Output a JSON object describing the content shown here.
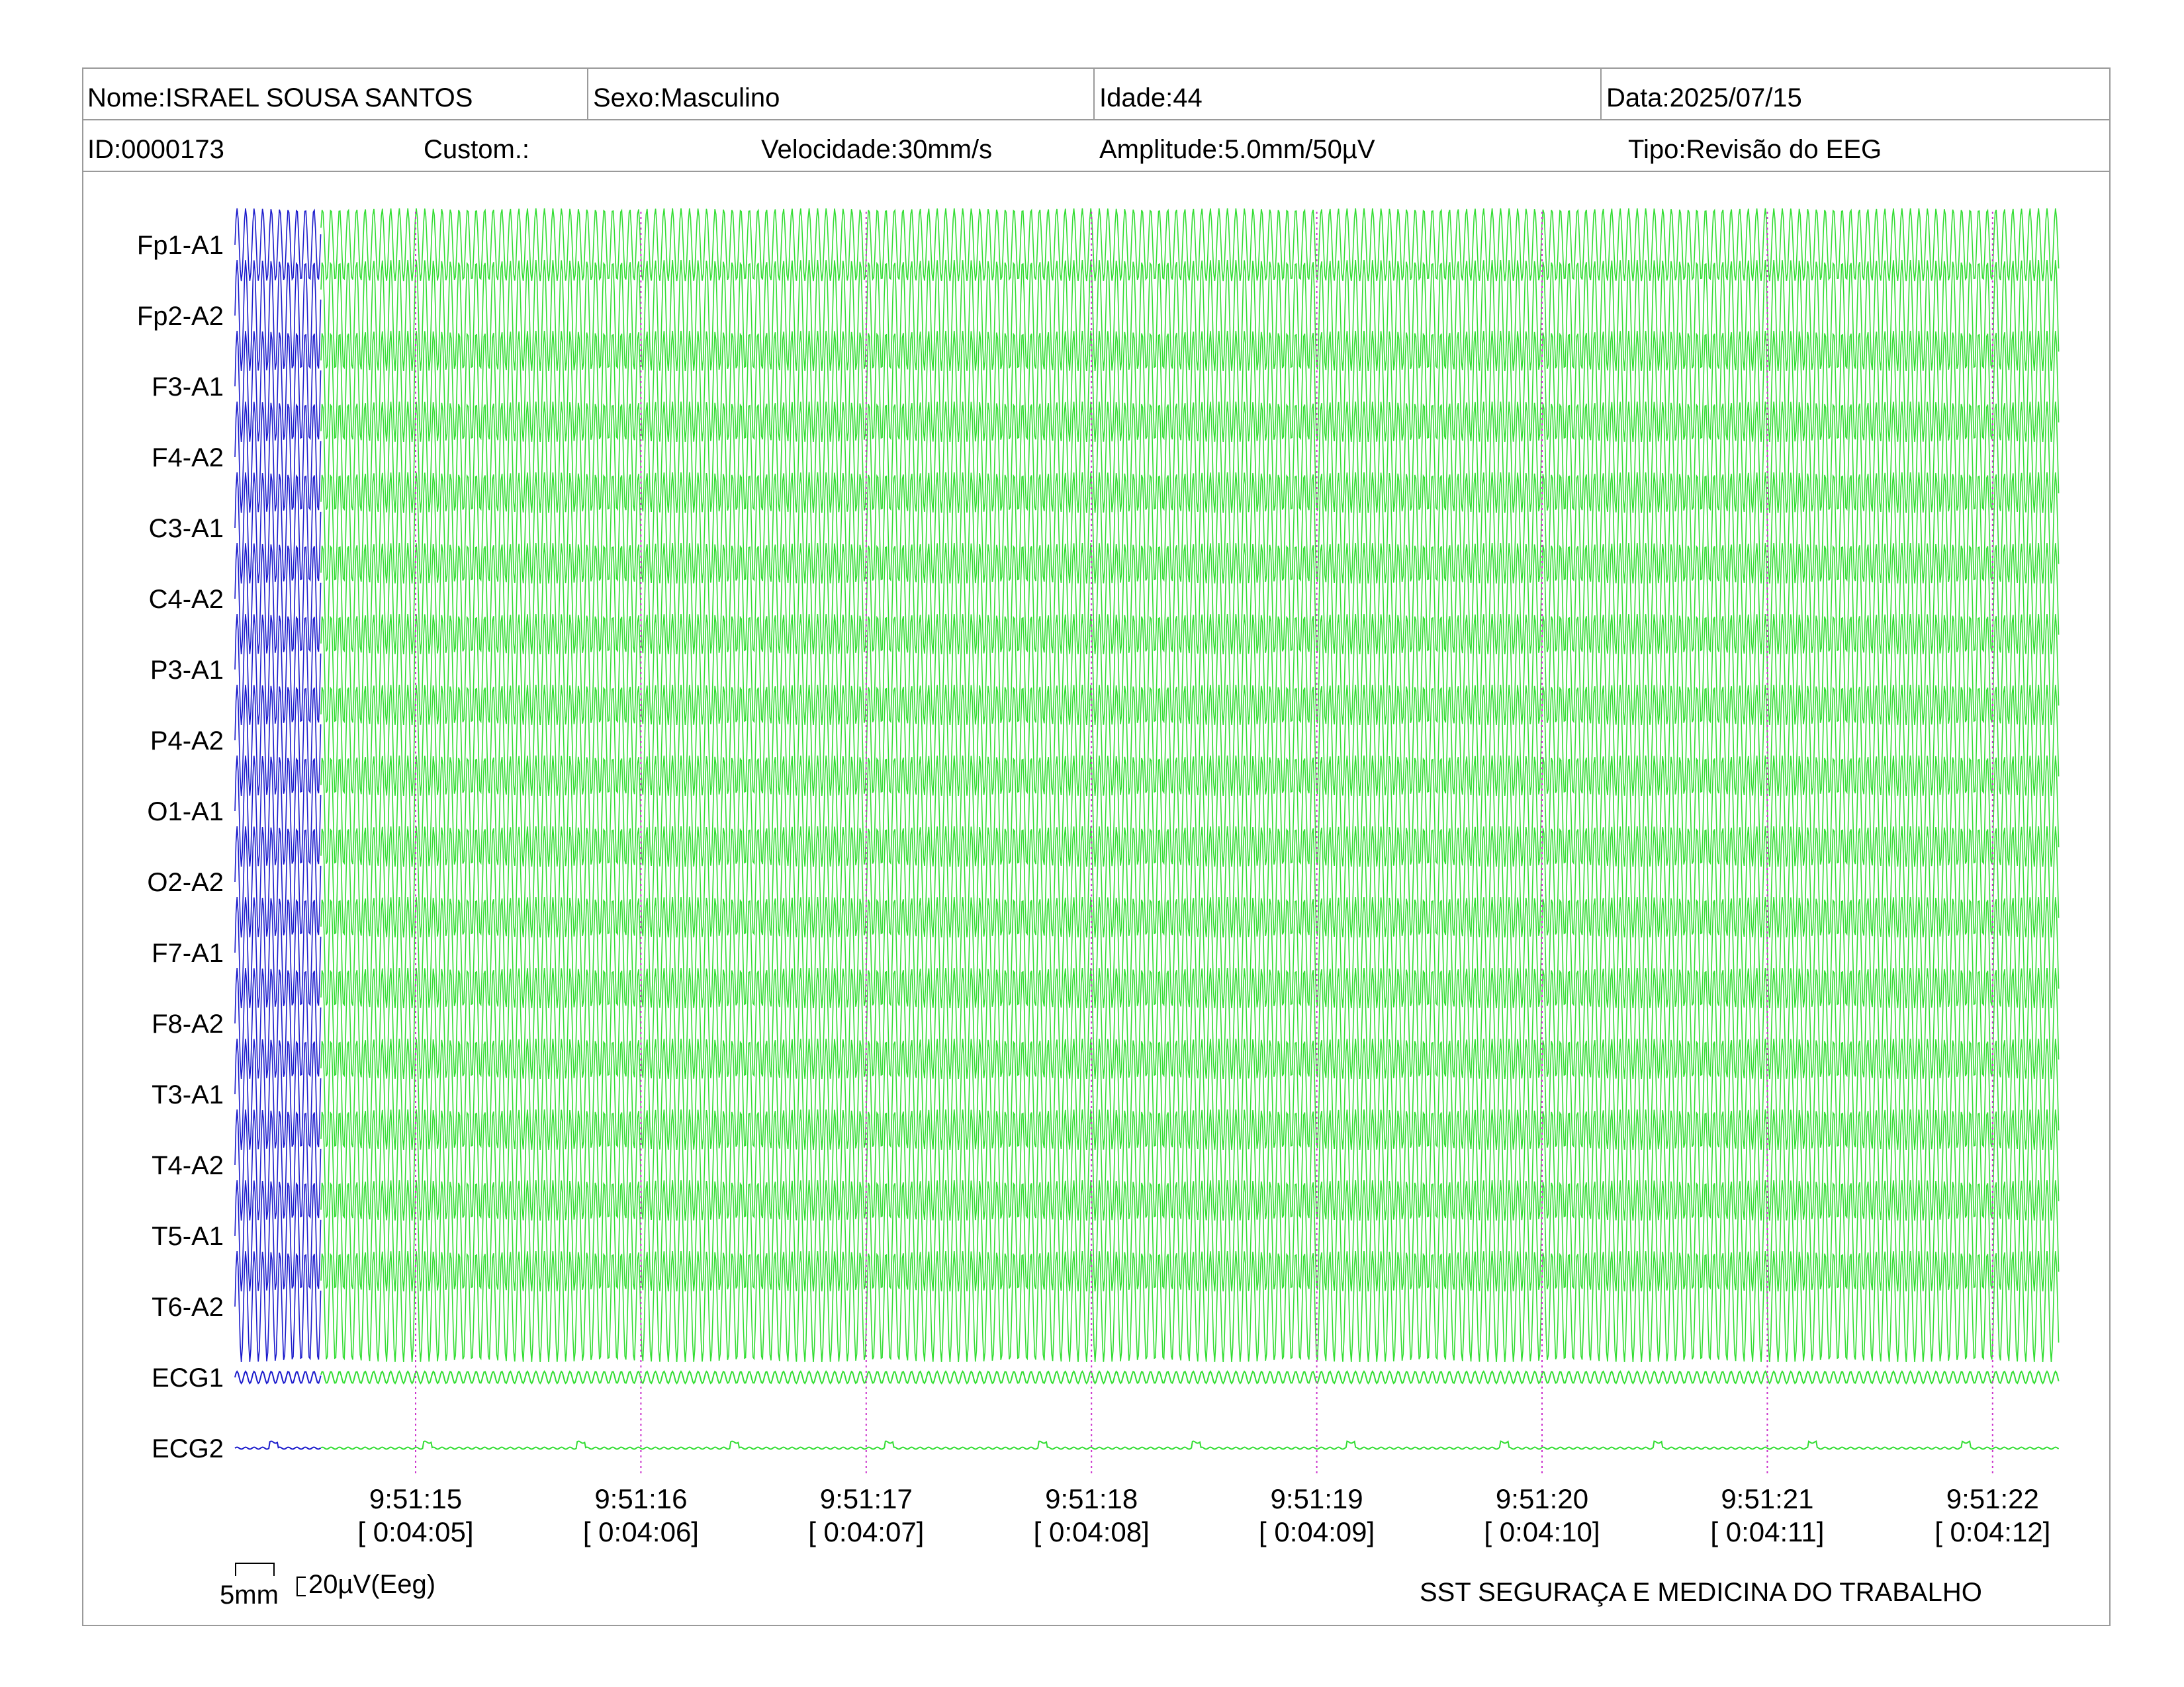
{
  "header": {
    "nome": "Nome:ISRAEL SOUSA SANTOS",
    "sexo": "Sexo:Masculino",
    "idade": "Idade:44",
    "data": "Data:2025/07/15",
    "id": "ID:0000173",
    "custom": "Custom.:",
    "velocidade": "Velocidade:30mm/s",
    "amplitude": "Amplitude:5.0mm/50µV",
    "tipo": "Tipo:Revisão do EEG"
  },
  "chart_data": {
    "type": "line",
    "channels": [
      "Fp1-A1",
      "Fp2-A2",
      "F3-A1",
      "F4-A2",
      "C3-A1",
      "C4-A2",
      "P3-A1",
      "P4-A2",
      "O1-A1",
      "O2-A2",
      "F7-A1",
      "F8-A2",
      "T3-A1",
      "T4-A2",
      "T5-A1",
      "T6-A2",
      "ECG1",
      "ECG2"
    ],
    "time_ticks": [
      {
        "clock": "9:51:15",
        "elapsed": "[ 0:04:05]"
      },
      {
        "clock": "9:51:16",
        "elapsed": "[ 0:04:06]"
      },
      {
        "clock": "9:51:17",
        "elapsed": "[ 0:04:07]"
      },
      {
        "clock": "9:51:18",
        "elapsed": "[ 0:04:08]"
      },
      {
        "clock": "9:51:19",
        "elapsed": "[ 0:04:09]"
      },
      {
        "clock": "9:51:20",
        "elapsed": "[ 0:04:10]"
      },
      {
        "clock": "9:51:21",
        "elapsed": "[ 0:04:11]"
      },
      {
        "clock": "9:51:22",
        "elapsed": "[ 0:04:12]"
      }
    ],
    "colors": {
      "blue": "#1a1acc",
      "green": "#33dd33",
      "marker": "#cc33cc"
    }
  },
  "scale": {
    "time_label": "5mm",
    "amp_label": "20µV(Eeg)"
  },
  "footer": {
    "org": "SST SEGURAÇA E MEDICINA DO TRABALHO"
  }
}
